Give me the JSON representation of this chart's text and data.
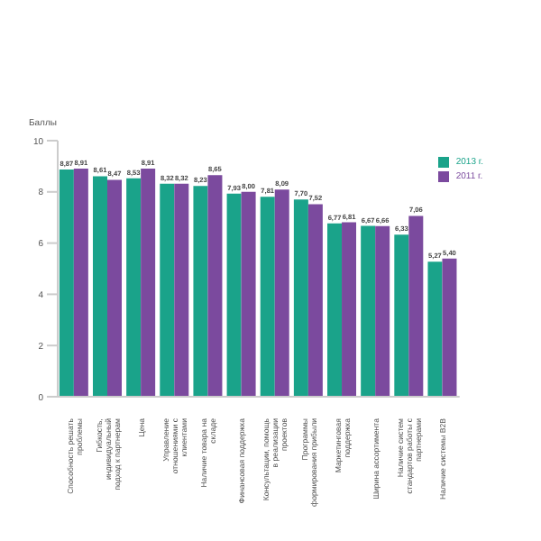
{
  "chart_data": {
    "type": "bar",
    "ylabel": "Баллы",
    "categories": [
      "Способность решать проблемы",
      "Гибкость, индивидуальный подход к партнерам",
      "Цена",
      "Управление отношениями с клиентами",
      "Наличие товара на складе",
      "Финансовая поддержка",
      "Консультации, помощь в реализации проектов",
      "Программы формирования прибыли",
      "Маркетинговая поддержка",
      "Ширина ассортимента",
      "Наличие систем стандартов работы с партнерами",
      "Наличие системы B2B"
    ],
    "series": [
      {
        "name": "2013 г.",
        "color": "#1aa38a",
        "values": [
          8.87,
          8.61,
          8.53,
          8.32,
          8.23,
          7.93,
          7.81,
          7.7,
          6.77,
          6.67,
          6.33,
          5.27
        ],
        "value_labels": [
          "8,87",
          "8,61",
          "8,53",
          "8,32",
          "8,23",
          "7,93",
          "7,81",
          "7,70",
          "6,77",
          "6,67",
          "6,33",
          "5,27"
        ]
      },
      {
        "name": "2011 г.",
        "color": "#7b4a9e",
        "values": [
          8.91,
          8.47,
          8.91,
          8.32,
          8.65,
          8.0,
          8.09,
          7.52,
          6.81,
          6.66,
          7.06,
          5.4
        ],
        "value_labels": [
          "8,91",
          "8,47",
          "8,91",
          "8,32",
          "8,65",
          "8,00",
          "8,09",
          "7,52",
          "6,81",
          "6,66",
          "7,06",
          "5,40"
        ]
      }
    ],
    "ylim": [
      0,
      10
    ],
    "yticks": [
      0,
      2,
      4,
      6,
      8,
      10
    ],
    "grid": false,
    "legend": "top right"
  }
}
